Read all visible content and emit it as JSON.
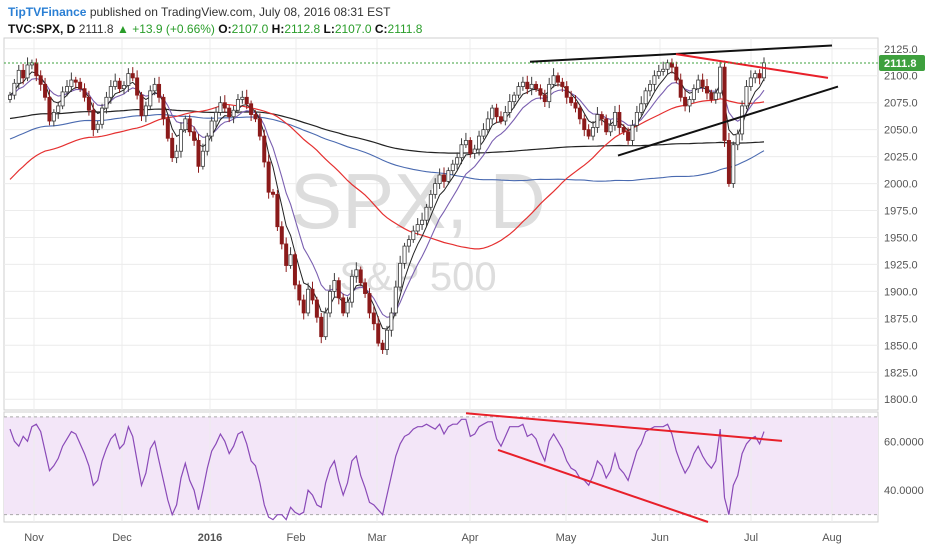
{
  "header": {
    "publisher": "TipTVFinance",
    "published_text": "published on TradingView.com, July 08, 2016 08:31 EST",
    "symbol": "TVC:SPX, D",
    "last": "2111.8",
    "change": "+13.9 (+0.66%)",
    "o_label": "O:",
    "o": "2107.0",
    "h_label": "H:",
    "h": "2112.8",
    "l_label": "L:",
    "l": "2107.0",
    "c_label": "C:",
    "c": "2111.8"
  },
  "watermark": {
    "symbol": "SPX, D",
    "name": "S&P 500"
  },
  "colors": {
    "up": "#3d3d3d",
    "down": "#8b1a1a",
    "ma_black": "#222222",
    "ma_red": "#e53030",
    "ma_blue": "#4a6ab0",
    "ma_purple": "#7a5fb0",
    "rsi_line": "#8a4ab8",
    "rsi_bg": "#f3e6f8",
    "trend_black": "#111111",
    "trend_red": "#e8202a",
    "price_tag": "#3ea03e"
  },
  "chart_data": [
    {
      "type": "candlestick",
      "title": "TVC:SPX, D",
      "ylim": [
        1790,
        2135
      ],
      "y_ticks": [
        "2125.0",
        "2100.0",
        "2075.0",
        "2050.0",
        "2025.0",
        "2000.0",
        "1975.0",
        "1950.0",
        "1925.0",
        "1900.0",
        "1875.0",
        "1850.0",
        "1825.0",
        "1800.0"
      ],
      "x_ticks": [
        "Nov",
        "Dec",
        "2016",
        "Feb",
        "Mar",
        "Apr",
        "May",
        "Jun",
        "Jul",
        "Aug"
      ],
      "last_price_label": "2111.8",
      "closes": [
        2082,
        2093,
        2105,
        2098,
        2110,
        2112,
        2100,
        2092,
        2080,
        2058,
        2066,
        2072,
        2085,
        2090,
        2096,
        2094,
        2088,
        2080,
        2068,
        2050,
        2055,
        2070,
        2080,
        2090,
        2095,
        2088,
        2091,
        2102,
        2098,
        2082,
        2063,
        2072,
        2086,
        2092,
        2080,
        2060,
        2042,
        2024,
        2030,
        2050,
        2060,
        2048,
        2040,
        2016,
        2030,
        2044,
        2058,
        2066,
        2075,
        2070,
        2062,
        2068,
        2078,
        2080,
        2074,
        2064,
        2060,
        2044,
        2020,
        1992,
        1990,
        1960,
        1944,
        1924,
        1934,
        1906,
        1892,
        1880,
        1902,
        1892,
        1876,
        1858,
        1880,
        1900,
        1910,
        1894,
        1880,
        1890,
        1914,
        1920,
        1908,
        1898,
        1880,
        1870,
        1852,
        1846,
        1864,
        1880,
        1904,
        1926,
        1942,
        1948,
        1956,
        1962,
        1966,
        1978,
        1990,
        2000,
        2008,
        2002,
        2012,
        2018,
        2024,
        2036,
        2040,
        2028,
        2032,
        2044,
        2050,
        2060,
        2070,
        2062,
        2058,
        2066,
        2076,
        2082,
        2090,
        2094,
        2088,
        2092,
        2088,
        2082,
        2076,
        2092,
        2100,
        2094,
        2090,
        2080,
        2075,
        2070,
        2060,
        2050,
        2044,
        2052,
        2064,
        2060,
        2048,
        2054,
        2066,
        2052,
        2048,
        2040,
        2054,
        2066,
        2074,
        2086,
        2092,
        2100,
        2104,
        2106,
        2112,
        2108,
        2096,
        2080,
        2072,
        2078,
        2088,
        2096,
        2090,
        2084,
        2078,
        2084,
        2108,
        2040,
        2000,
        2036,
        2046,
        2072,
        2090,
        2098,
        2102,
        2098,
        2112
      ]
    },
    {
      "type": "line",
      "title": "RSI",
      "ylim": [
        27,
        72
      ],
      "y_ticks": [
        "60.0000",
        "40.0000"
      ],
      "guide_levels": [
        70,
        30
      ],
      "values": [
        65,
        60,
        58,
        62,
        60,
        66,
        67,
        64,
        56,
        48,
        50,
        53,
        58,
        61,
        64,
        63,
        59,
        55,
        50,
        42,
        44,
        52,
        57,
        61,
        63,
        57,
        59,
        66,
        62,
        52,
        42,
        47,
        57,
        60,
        52,
        44,
        36,
        30,
        34,
        45,
        51,
        44,
        40,
        32,
        40,
        49,
        56,
        59,
        63,
        60,
        55,
        58,
        63,
        64,
        59,
        52,
        50,
        43,
        34,
        29,
        28,
        30,
        30,
        28,
        33,
        31,
        30,
        31,
        40,
        38,
        34,
        33,
        43,
        49,
        52,
        44,
        38,
        43,
        52,
        54,
        46,
        41,
        35,
        34,
        32,
        30,
        38,
        46,
        54,
        59,
        62,
        63,
        65,
        66,
        66,
        67,
        66,
        65,
        67,
        63,
        66,
        67,
        67,
        69,
        69,
        62,
        63,
        66,
        67,
        68,
        68,
        61,
        58,
        62,
        66,
        66,
        66,
        67,
        62,
        63,
        61,
        56,
        52,
        60,
        63,
        60,
        57,
        52,
        49,
        48,
        45,
        44,
        42,
        46,
        52,
        50,
        45,
        48,
        55,
        49,
        47,
        44,
        50,
        56,
        59,
        64,
        65,
        66,
        66,
        66,
        67,
        63,
        56,
        51,
        47,
        50,
        55,
        58,
        54,
        51,
        49,
        52,
        65,
        37,
        30,
        42,
        46,
        55,
        59,
        61,
        62,
        59,
        64
      ]
    }
  ]
}
